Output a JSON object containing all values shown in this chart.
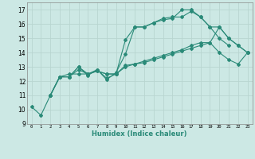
{
  "title": "",
  "xlabel": "Humidex (Indice chaleur)",
  "xlim": [
    -0.5,
    23.5
  ],
  "ylim": [
    9,
    17.5
  ],
  "yticks": [
    9,
    10,
    11,
    12,
    13,
    14,
    15,
    16,
    17
  ],
  "xticks": [
    0,
    1,
    2,
    3,
    4,
    5,
    6,
    7,
    8,
    9,
    10,
    11,
    12,
    13,
    14,
    15,
    16,
    17,
    18,
    19,
    20,
    21,
    22,
    23
  ],
  "xtick_labels": [
    "0",
    "1",
    "2",
    "3",
    "4",
    "5",
    "6",
    "7",
    "8",
    "9",
    "10",
    "11",
    "12",
    "13",
    "14",
    "15",
    "16",
    "17",
    "18",
    "19",
    "20",
    "21",
    "22",
    "23"
  ],
  "line_color": "#2a8a78",
  "bg_color": "#cce8e4",
  "grid_color": "#b8d5d0",
  "lines": [
    {
      "x": [
        0,
        1,
        2,
        3,
        4,
        5,
        6,
        7,
        8,
        9,
        10,
        11,
        12,
        13,
        14,
        15,
        16,
        17,
        18,
        19,
        20,
        21
      ],
      "y": [
        10.2,
        9.6,
        11.0,
        12.3,
        12.3,
        13.0,
        12.5,
        12.8,
        12.2,
        12.5,
        14.9,
        15.8,
        15.8,
        16.1,
        16.3,
        16.4,
        17.0,
        17.0,
        16.5,
        15.8,
        15.0,
        14.5
      ]
    },
    {
      "x": [
        2,
        3,
        4,
        5,
        6,
        7,
        8,
        9,
        10,
        11,
        12,
        13,
        14,
        15,
        16,
        17,
        18,
        19,
        20,
        21,
        22,
        23
      ],
      "y": [
        11.0,
        12.3,
        12.3,
        12.8,
        12.5,
        12.7,
        12.5,
        12.5,
        13.0,
        13.2,
        13.4,
        13.6,
        13.8,
        14.0,
        14.2,
        14.5,
        14.7,
        14.7,
        14.0,
        13.5,
        13.2,
        14.0
      ]
    },
    {
      "x": [
        2,
        3,
        4,
        5,
        6,
        7,
        8,
        9,
        10,
        11,
        12,
        13,
        14,
        15,
        16,
        17,
        18,
        19,
        20,
        21,
        22,
        23
      ],
      "y": [
        11.0,
        12.3,
        12.5,
        12.5,
        12.5,
        12.7,
        12.5,
        12.5,
        13.1,
        13.2,
        13.3,
        13.5,
        13.7,
        13.9,
        14.1,
        14.3,
        14.5,
        14.7,
        15.8,
        15.0,
        14.5,
        14.0
      ]
    },
    {
      "x": [
        2,
        3,
        4,
        5,
        6,
        7,
        8,
        9,
        10,
        11,
        12,
        13,
        14,
        15,
        16,
        17,
        18,
        19,
        20,
        21,
        22,
        23
      ],
      "y": [
        11.0,
        12.3,
        12.3,
        13.0,
        12.4,
        12.8,
        12.1,
        12.6,
        13.9,
        15.8,
        15.8,
        16.1,
        16.4,
        16.5,
        16.5,
        16.9,
        16.5,
        15.8,
        15.8,
        15.0,
        14.5,
        14.0
      ]
    }
  ],
  "figsize": [
    3.2,
    2.0
  ],
  "dpi": 100
}
